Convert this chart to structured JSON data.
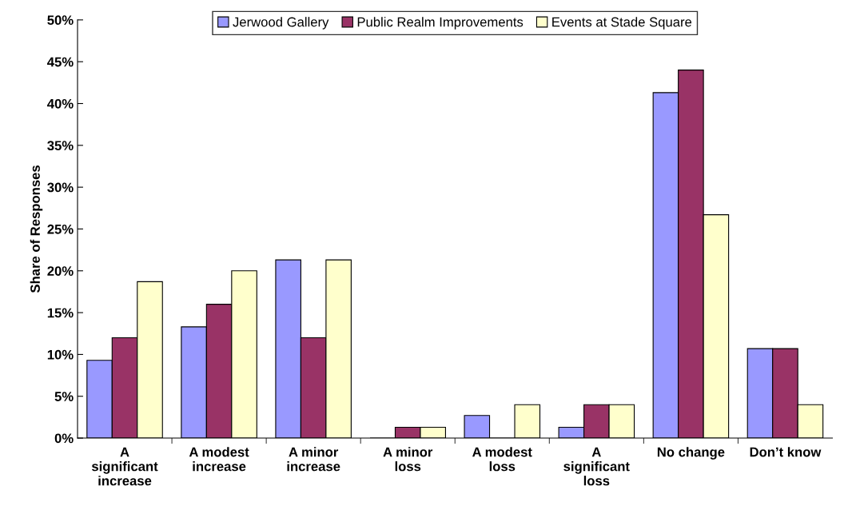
{
  "chart_data": {
    "type": "bar",
    "ylabel": "Share of Responses",
    "categories": [
      "A\nsignificant\nincrease",
      "A modest\nincrease",
      "A minor\nincrease",
      "A minor\nloss",
      "A modest\nloss",
      "A\nsignificant\nloss",
      "No change",
      "Don’t know"
    ],
    "series": [
      {
        "name": "Jerwood Gallery",
        "color": "#9999ff",
        "values": [
          9.3,
          13.3,
          21.3,
          0,
          2.7,
          1.3,
          41.3,
          10.7
        ]
      },
      {
        "name": "Public Realm Improvements",
        "color": "#993366",
        "values": [
          12,
          16,
          12,
          1.3,
          0,
          4,
          44,
          10.7
        ]
      },
      {
        "name": "Events at Stade Square",
        "color": "#ffffcc",
        "values": [
          18.7,
          20,
          21.3,
          1.3,
          4,
          4,
          26.7,
          4
        ]
      }
    ],
    "ylim": [
      0,
      50
    ],
    "yticks": [
      {
        "value": 0,
        "label": "0%"
      },
      {
        "value": 5,
        "label": "5%"
      },
      {
        "value": 10,
        "label": "10%"
      },
      {
        "value": 15,
        "label": "15%"
      },
      {
        "value": 20,
        "label": "20%"
      },
      {
        "value": 25,
        "label": "25%"
      },
      {
        "value": 30,
        "label": "30%"
      },
      {
        "value": 35,
        "label": "35%"
      },
      {
        "value": 40,
        "label": "40%"
      },
      {
        "value": 45,
        "label": "45%"
      },
      {
        "value": 50,
        "label": "50%"
      }
    ],
    "grid": false,
    "legend": "top"
  }
}
